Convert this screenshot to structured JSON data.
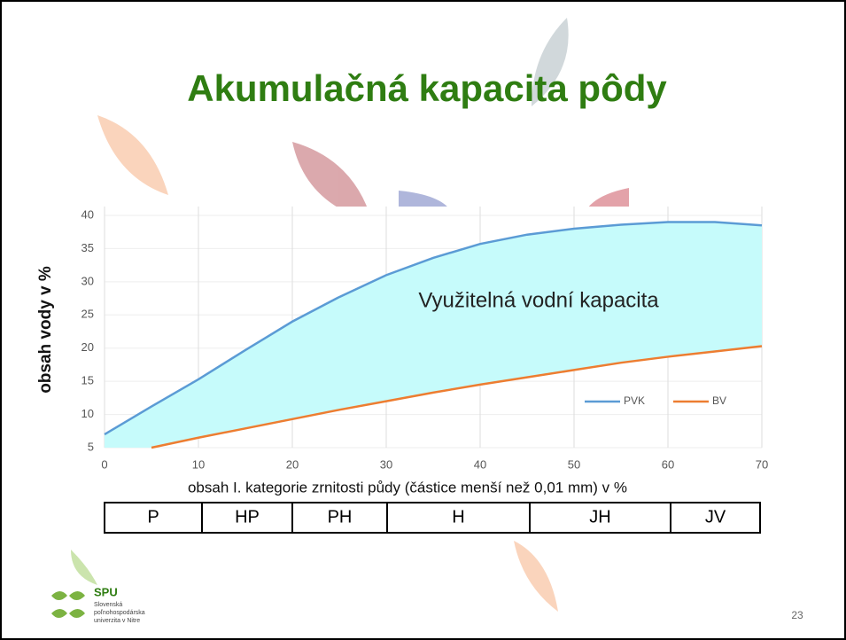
{
  "chart_data": {
    "type": "area-between-lines",
    "title": "Akumulačná kapacita pôdy",
    "annotation": "Využitelná vodní kapacita",
    "x_label": "obsah I. kategorie zrnitosti půdy (částice menší než 0,01 mm) v %",
    "y_label": "obsah vody v %",
    "x": [
      0,
      5,
      10,
      15,
      20,
      25,
      30,
      35,
      40,
      45,
      50,
      55,
      60,
      65,
      70
    ],
    "series": [
      {
        "name": "PVK",
        "color": "#5b9bd5",
        "values": [
          7,
          11.2,
          15.3,
          19.7,
          24,
          27.7,
          31,
          33.6,
          35.7,
          37.1,
          38,
          38.6,
          39,
          39,
          38.5
        ]
      },
      {
        "name": "BV",
        "color": "#ed7d31",
        "values": [
          null,
          5,
          6.5,
          7.9,
          9.3,
          10.7,
          12,
          13.3,
          14.5,
          15.6,
          16.7,
          17.8,
          18.7,
          19.5,
          20.3
        ]
      }
    ],
    "fill_color": "#c6fbfb",
    "xlim": [
      0,
      70
    ],
    "xticks": [
      0,
      10,
      20,
      30,
      40,
      50,
      60,
      70
    ],
    "ylim": [
      5,
      40
    ],
    "yticks": [
      5,
      10,
      15,
      20,
      25,
      30,
      35,
      40
    ],
    "grid": true,
    "legend": "lower right",
    "texture_classes": [
      "P",
      "HP",
      "PH",
      "H",
      "JH",
      "JV"
    ]
  },
  "logo": {
    "name": "SPU",
    "lines": [
      "Slovenská",
      "poľnohospodárska",
      "univerzita v Nitre"
    ]
  },
  "slide_number": 23
}
